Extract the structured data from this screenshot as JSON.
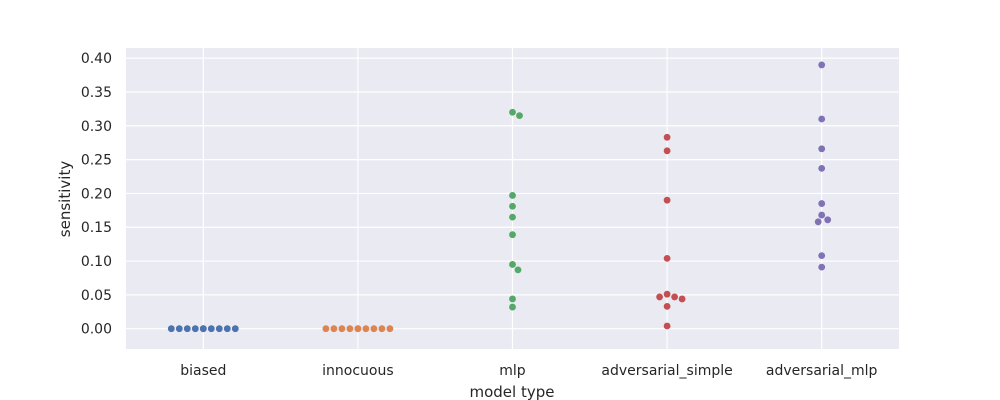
{
  "chart_data": {
    "type": "scatter",
    "subtype": "swarm",
    "xlabel": "model type",
    "ylabel": "sensitivity",
    "ylim": [
      -0.03,
      0.415
    ],
    "grid": true,
    "background_color": "#eaeaf2",
    "grid_color": "#ffffff",
    "y_ticks": [
      0.0,
      0.05,
      0.1,
      0.15,
      0.2,
      0.25,
      0.3,
      0.35,
      0.4
    ],
    "y_tick_labels": [
      "0.00",
      "0.05",
      "0.10",
      "0.15",
      "0.20",
      "0.25",
      "0.30",
      "0.35",
      "0.40"
    ],
    "categories": [
      "biased",
      "innocuous",
      "mlp",
      "adversarial_simple",
      "adversarial_mlp"
    ],
    "series": [
      {
        "category": "biased",
        "color": "#4c72b0",
        "values": [
          0,
          0,
          0,
          0,
          0,
          0,
          0,
          0,
          0,
          0
        ]
      },
      {
        "category": "innocuous",
        "color": "#dd8452",
        "values": [
          0,
          0,
          0,
          0,
          0,
          0,
          0,
          0,
          0,
          0
        ]
      },
      {
        "category": "mlp",
        "color": "#55a868",
        "values": [
          0.32,
          0.315,
          0.197,
          0.181,
          0.165,
          0.139,
          0.095,
          0.087,
          0.044,
          0.032
        ]
      },
      {
        "category": "adversarial_simple",
        "color": "#c44e52",
        "values": [
          0.283,
          0.263,
          0.19,
          0.104,
          0.051,
          0.047,
          0.047,
          0.044,
          0.033,
          0.004
        ]
      },
      {
        "category": "adversarial_mlp",
        "color": "#8172b3",
        "values": [
          0.39,
          0.31,
          0.266,
          0.237,
          0.185,
          0.168,
          0.161,
          0.158,
          0.108,
          0.091
        ]
      }
    ]
  }
}
